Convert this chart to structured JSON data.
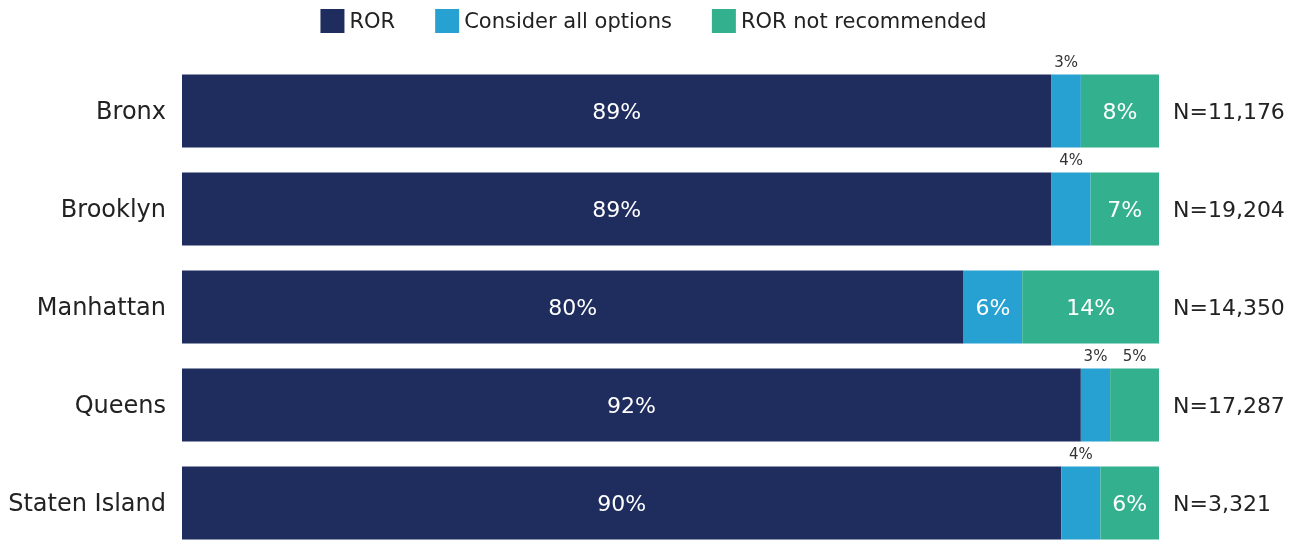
{
  "chart_data": {
    "type": "bar",
    "orientation": "horizontal",
    "stacked": true,
    "legend": "top",
    "categories": [
      "Bronx",
      "Brooklyn",
      "Manhattan",
      "Queens",
      "Staten Island"
    ],
    "series": [
      {
        "name": "ROR",
        "color": "#1f2d5e",
        "values": [
          89,
          89,
          80,
          92,
          90
        ],
        "value_labels": [
          "89%",
          "89%",
          "80%",
          "92%",
          "90%"
        ]
      },
      {
        "name": "Consider all options",
        "color": "#27a0d2",
        "values": [
          3,
          4,
          6,
          3,
          4
        ],
        "value_labels": [
          "3%",
          "4%",
          "6%",
          "3%",
          "4%"
        ]
      },
      {
        "name": "ROR not recommended",
        "color": "#33b08e",
        "values": [
          8,
          7,
          14,
          5,
          6
        ],
        "value_labels": [
          "8%",
          "7%",
          "14%",
          "5%",
          "6%"
        ]
      }
    ],
    "annotations": [
      "N=11,176",
      "N=19,204",
      "N=14,350",
      "N=17,287",
      "N=3,321"
    ]
  }
}
